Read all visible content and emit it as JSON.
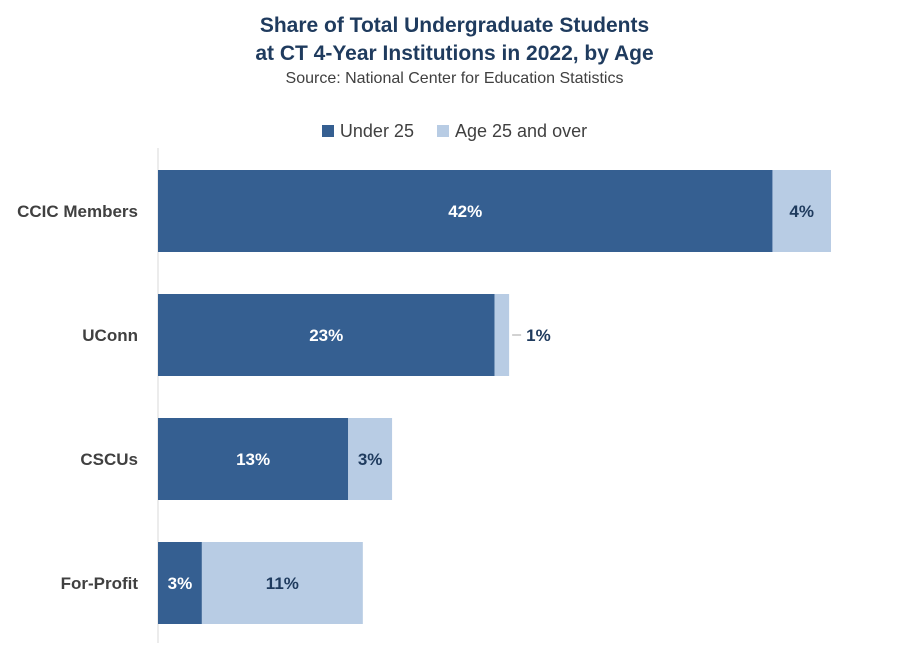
{
  "chart_data": {
    "type": "bar",
    "orientation": "horizontal",
    "stacked": true,
    "title_lines": [
      "Share of Total Undergraduate Students",
      "at CT 4-Year Institutions in 2022, by Age"
    ],
    "subtitle": "Source: National Center for Education Statistics",
    "categories": [
      "CCIC Members",
      "UConn",
      "CSCUs",
      "For-Profit"
    ],
    "series": [
      {
        "name": "Under 25",
        "values": [
          42,
          23,
          13,
          3
        ],
        "labels": [
          "42%",
          "23%",
          "13%",
          "3%"
        ],
        "color": "#355f91"
      },
      {
        "name": "Age 25 and over",
        "values": [
          4,
          1,
          3,
          11
        ],
        "labels": [
          "4%",
          "1%",
          "3%",
          "11%"
        ],
        "color": "#b8cce4"
      }
    ],
    "unit": "%",
    "grid": false,
    "legend_position": "top"
  }
}
